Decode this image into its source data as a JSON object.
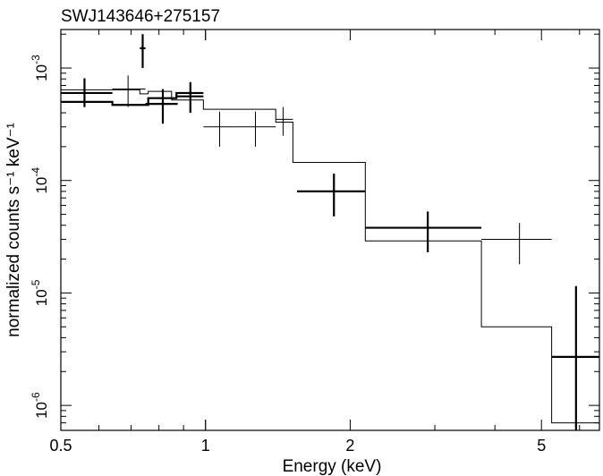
{
  "chart_data": {
    "type": "step-spectrum",
    "title": "SWJ143646+275157",
    "xlabel": "Energy (keV)",
    "ylabel": "normalized counts s⁻¹ keV⁻¹",
    "xscale": "log",
    "yscale": "log",
    "xlim": [
      0.5,
      6.6
    ],
    "ylim": [
      6e-07,
      0.0022
    ],
    "x_ticks": [
      {
        "value": 0.5,
        "label": "0.5"
      },
      {
        "value": 1,
        "label": "1"
      },
      {
        "value": 2,
        "label": "2"
      },
      {
        "value": 5,
        "label": "5"
      }
    ],
    "y_ticks": [
      {
        "value": 1e-06,
        "base": "10",
        "exp": "-6"
      },
      {
        "value": 1e-05,
        "base": "10",
        "exp": "-5"
      },
      {
        "value": 0.0001,
        "base": "10",
        "exp": "-4"
      },
      {
        "value": 0.001,
        "base": "10",
        "exp": "-3"
      }
    ],
    "series": [
      {
        "style": "thick",
        "data_points": [
          {
            "x": 0.56,
            "xlo": 0.5,
            "xhi": 0.64,
            "y": 0.0006,
            "ylo": 0.00045,
            "yhi": 0.00081
          },
          {
            "x": 0.74,
            "xlo": 0.73,
            "xhi": 0.75,
            "y": 0.0015,
            "ylo": 0.001,
            "yhi": 0.002
          },
          {
            "x": 0.815,
            "xlo": 0.75,
            "xhi": 0.875,
            "y": 0.00048,
            "ylo": 0.00032,
            "yhi": 0.00065
          },
          {
            "x": 0.93,
            "xlo": 0.87,
            "xhi": 0.99,
            "y": 0.00056,
            "ylo": 0.0004,
            "yhi": 0.00075
          },
          {
            "x": 1.85,
            "xlo": 1.55,
            "xhi": 2.15,
            "y": 8e-05,
            "ylo": 4.8e-05,
            "yhi": 0.000115
          },
          {
            "x": 2.9,
            "xlo": 2.15,
            "xhi": 3.75,
            "y": 3.8e-05,
            "ylo": 2.3e-05,
            "yhi": 5.3e-05
          },
          {
            "x": 5.9,
            "xlo": 5.25,
            "xhi": 6.6,
            "y": 2.7e-06,
            "ylo": 6e-07,
            "yhi": 1.15e-05
          }
        ],
        "model": [
          {
            "x0": 0.5,
            "x1": 0.64,
            "y": 0.0005
          },
          {
            "x0": 0.64,
            "x1": 0.76,
            "y": 0.00047
          },
          {
            "x0": 0.76,
            "x1": 0.87,
            "y": 0.00054
          },
          {
            "x0": 0.87,
            "x1": 0.99,
            "y": 0.0006
          }
        ]
      },
      {
        "style": "thin",
        "data_points": [
          {
            "x": 0.56,
            "xlo": 0.5,
            "xhi": 0.64,
            "y": 0.0006,
            "ylo": 0.00045,
            "yhi": 0.00081
          },
          {
            "x": 0.69,
            "xlo": 0.64,
            "xhi": 0.75,
            "y": 0.00065,
            "ylo": 0.00045,
            "yhi": 0.00086
          },
          {
            "x": 1.07,
            "xlo": 0.99,
            "xhi": 1.15,
            "y": 0.0003,
            "ylo": 0.0002,
            "yhi": 0.00041
          },
          {
            "x": 1.27,
            "xlo": 1.15,
            "xhi": 1.4,
            "y": 0.0003,
            "ylo": 0.0002,
            "yhi": 0.00041
          },
          {
            "x": 1.45,
            "xlo": 1.4,
            "xhi": 1.52,
            "y": 0.00035,
            "ylo": 0.00025,
            "yhi": 0.00045
          },
          {
            "x": 4.5,
            "xlo": 3.75,
            "xhi": 5.25,
            "y": 3e-05,
            "ylo": 1.8e-05,
            "yhi": 4.2e-05
          }
        ],
        "model": [
          {
            "x0": 0.5,
            "x1": 0.73,
            "y": 0.00064
          },
          {
            "x0": 0.73,
            "x1": 0.76,
            "y": 0.00059
          },
          {
            "x0": 0.76,
            "x1": 0.85,
            "y": 0.00062
          },
          {
            "x0": 0.85,
            "x1": 0.99,
            "y": 0.00052
          },
          {
            "x0": 0.99,
            "x1": 1.4,
            "y": 0.00043
          },
          {
            "x0": 1.4,
            "x1": 1.52,
            "y": 0.00033
          },
          {
            "x0": 1.52,
            "x1": 2.15,
            "y": 0.000145
          },
          {
            "x0": 2.15,
            "x1": 3.75,
            "y": 2.9e-05
          },
          {
            "x0": 3.75,
            "x1": 5.25,
            "y": 5e-06
          },
          {
            "x0": 5.25,
            "x1": 6.6,
            "y": 7e-07
          }
        ]
      }
    ]
  }
}
